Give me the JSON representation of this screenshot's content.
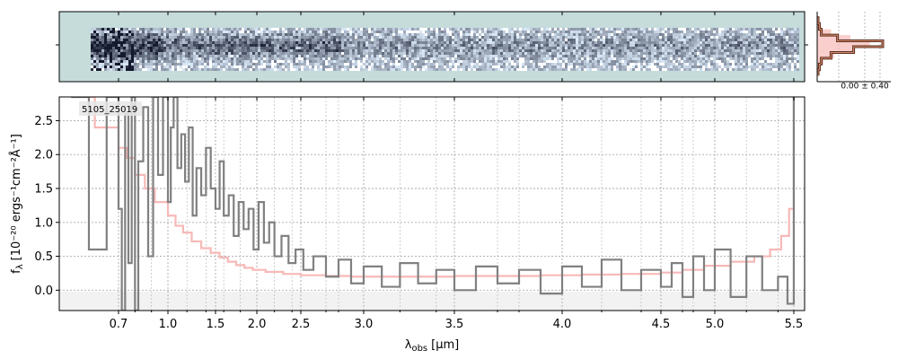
{
  "chart_data": [
    {
      "type": "heatmap",
      "panel": "2d-spectrum",
      "colormap": "bone-like grayscale on teal background",
      "background_color": "#c5dcdb",
      "x_axis_matches": "1d-spectrum",
      "tick_labels_shown": false
    },
    {
      "type": "line",
      "panel": "profile",
      "annotation": "0.00 ± 0.40",
      "series": [
        {
          "color": "#5a2f22",
          "style": "steps",
          "values": [
            0.0,
            0.02,
            0.05,
            0.3,
            1.0,
            0.55,
            0.2,
            0.05,
            0.02,
            0.0
          ]
        },
        {
          "color": "#f7b9b7",
          "style": "filled-steps",
          "values": [
            0.0,
            0.05,
            0.2,
            0.5,
            0.8,
            0.55,
            0.25,
            0.08,
            0.02,
            0.0
          ]
        }
      ]
    },
    {
      "type": "line",
      "panel": "1d-spectrum",
      "object_label": "5105_25019",
      "xlabel_main": "λ",
      "xlabel_sub": "obs",
      "xlabel_unit": "[μm]",
      "ylabel_main": "f",
      "ylabel_sub": "λ",
      "ylabel_unit": "[10⁻²⁰ ergs⁻¹cm⁻²Å⁻¹]",
      "xlim": [
        0.6,
        5.52
      ],
      "ylim": [
        -0.3,
        2.85
      ],
      "x_ticks": [
        "0.7",
        "1.0",
        "1.5",
        "2.0",
        "2.5",
        "3.0",
        "3.5",
        "4.0",
        "4.5",
        "5.0",
        "5.5"
      ],
      "x_tick_values": [
        0.7,
        1.0,
        1.5,
        2.0,
        2.5,
        3.0,
        3.5,
        4.0,
        4.5,
        5.0,
        5.5
      ],
      "y_ticks": [
        "0.0",
        "0.5",
        "1.0",
        "1.5",
        "2.0",
        "2.5"
      ],
      "y_tick_values": [
        0.0,
        0.5,
        1.0,
        1.5,
        2.0,
        2.5
      ],
      "grid": true,
      "series": [
        {
          "color": "#808080",
          "style": "steps",
          "points": [
            [
              0.62,
              2.85
            ],
            [
              0.65,
              0.6
            ],
            [
              0.68,
              2.85
            ],
            [
              0.7,
              1.2
            ],
            [
              0.72,
              -0.3
            ],
            [
              0.74,
              2.6
            ],
            [
              0.76,
              0.4
            ],
            [
              0.78,
              2.85
            ],
            [
              0.8,
              -0.3
            ],
            [
              0.82,
              1.9
            ],
            [
              0.85,
              2.7
            ],
            [
              0.88,
              0.5
            ],
            [
              0.91,
              2.85
            ],
            [
              0.94,
              1.7
            ],
            [
              0.97,
              2.85
            ],
            [
              1.0,
              1.3
            ],
            [
              1.03,
              2.4
            ],
            [
              1.06,
              2.85
            ],
            [
              1.1,
              1.8
            ],
            [
              1.14,
              2.3
            ],
            [
              1.18,
              1.6
            ],
            [
              1.22,
              2.4
            ],
            [
              1.26,
              1.1
            ],
            [
              1.3,
              1.8
            ],
            [
              1.35,
              1.4
            ],
            [
              1.4,
              2.1
            ],
            [
              1.45,
              1.5
            ],
            [
              1.5,
              1.2
            ],
            [
              1.55,
              1.9
            ],
            [
              1.6,
              1.1
            ],
            [
              1.66,
              1.4
            ],
            [
              1.72,
              0.8
            ],
            [
              1.78,
              1.3
            ],
            [
              1.84,
              0.9
            ],
            [
              1.9,
              1.2
            ],
            [
              1.96,
              0.6
            ],
            [
              2.02,
              1.3
            ],
            [
              2.08,
              0.7
            ],
            [
              2.14,
              1.0
            ],
            [
              2.2,
              0.5
            ],
            [
              2.28,
              0.8
            ],
            [
              2.36,
              0.4
            ],
            [
              2.44,
              0.6
            ],
            [
              2.52,
              0.3
            ],
            [
              2.6,
              0.5
            ],
            [
              2.7,
              0.2
            ],
            [
              2.8,
              0.45
            ],
            [
              2.9,
              0.1
            ],
            [
              3.0,
              0.35
            ],
            [
              3.1,
              0.05
            ],
            [
              3.2,
              0.4
            ],
            [
              3.3,
              0.1
            ],
            [
              3.4,
              0.3
            ],
            [
              3.5,
              0.0
            ],
            [
              3.6,
              0.35
            ],
            [
              3.7,
              0.1
            ],
            [
              3.8,
              0.3
            ],
            [
              3.9,
              -0.05
            ],
            [
              4.0,
              0.35
            ],
            [
              4.1,
              0.05
            ],
            [
              4.2,
              0.45
            ],
            [
              4.3,
              0.0
            ],
            [
              4.4,
              0.3
            ],
            [
              4.5,
              0.05
            ],
            [
              4.6,
              0.4
            ],
            [
              4.7,
              -0.1
            ],
            [
              4.8,
              0.5
            ],
            [
              4.9,
              0.0
            ],
            [
              5.0,
              0.6
            ],
            [
              5.1,
              -0.1
            ],
            [
              5.2,
              0.5
            ],
            [
              5.3,
              0.0
            ],
            [
              5.4,
              0.2
            ],
            [
              5.46,
              -0.2
            ],
            [
              5.5,
              2.85
            ]
          ]
        },
        {
          "color": "#f7b9b7",
          "style": "steps",
          "points": [
            [
              0.62,
              2.85
            ],
            [
              0.66,
              2.4
            ],
            [
              0.7,
              2.1
            ],
            [
              0.75,
              1.95
            ],
            [
              0.8,
              1.7
            ],
            [
              0.86,
              1.5
            ],
            [
              0.92,
              1.3
            ],
            [
              1.0,
              1.1
            ],
            [
              1.08,
              0.95
            ],
            [
              1.16,
              0.85
            ],
            [
              1.25,
              0.72
            ],
            [
              1.35,
              0.62
            ],
            [
              1.45,
              0.55
            ],
            [
              1.55,
              0.48
            ],
            [
              1.65,
              0.42
            ],
            [
              1.75,
              0.37
            ],
            [
              1.85,
              0.33
            ],
            [
              1.95,
              0.3
            ],
            [
              2.1,
              0.27
            ],
            [
              2.3,
              0.24
            ],
            [
              2.5,
              0.22
            ],
            [
              2.7,
              0.21
            ],
            [
              2.9,
              0.2
            ],
            [
              3.1,
              0.2
            ],
            [
              3.3,
              0.2
            ],
            [
              3.5,
              0.21
            ],
            [
              3.7,
              0.21
            ],
            [
              3.9,
              0.22
            ],
            [
              4.1,
              0.23
            ],
            [
              4.3,
              0.24
            ],
            [
              4.5,
              0.26
            ],
            [
              4.7,
              0.3
            ],
            [
              4.9,
              0.36
            ],
            [
              5.1,
              0.42
            ],
            [
              5.25,
              0.5
            ],
            [
              5.35,
              0.6
            ],
            [
              5.42,
              0.8
            ],
            [
              5.47,
              1.2
            ],
            [
              5.5,
              2.85
            ]
          ]
        }
      ]
    }
  ]
}
